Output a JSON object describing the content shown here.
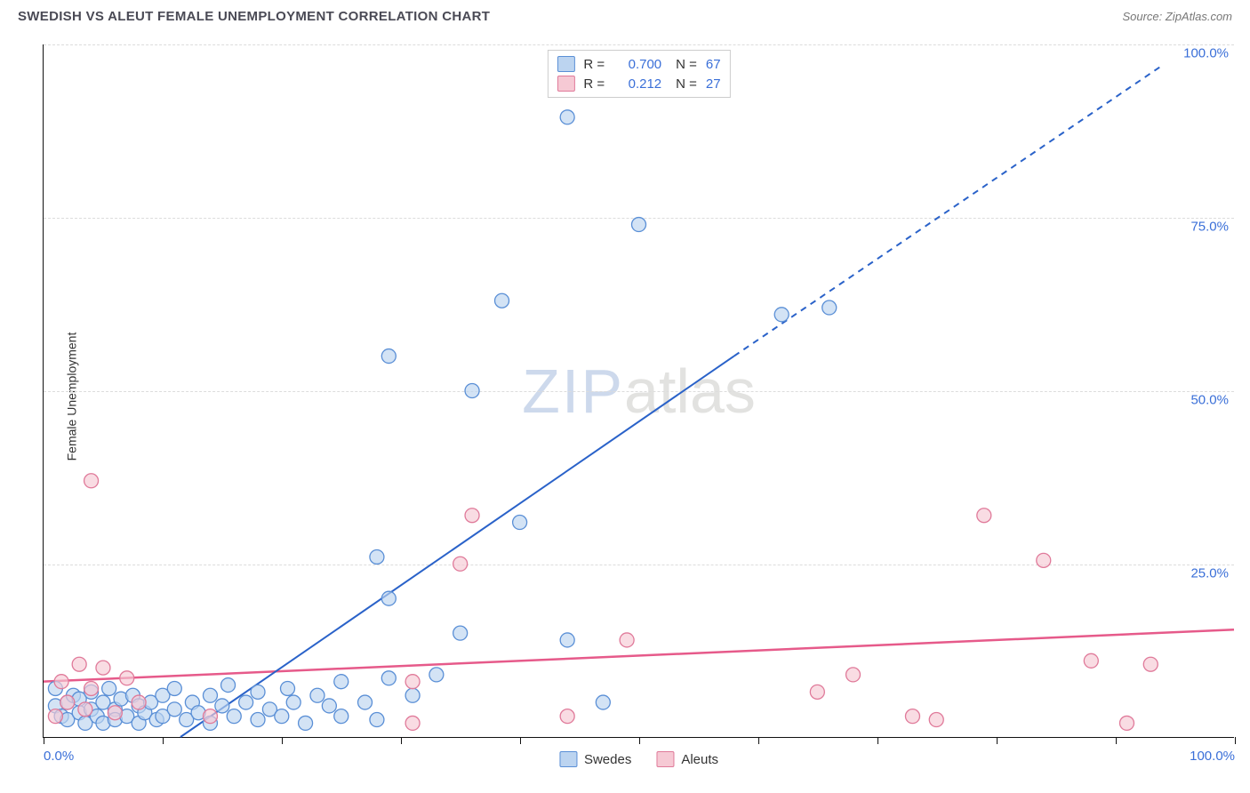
{
  "title": "SWEDISH VS ALEUT FEMALE UNEMPLOYMENT CORRELATION CHART",
  "source_label": "Source: ZipAtlas.com",
  "ylabel": "Female Unemployment",
  "watermark": {
    "part1": "ZIP",
    "part2": "atlas"
  },
  "chart": {
    "type": "scatter",
    "xlim": [
      0,
      100
    ],
    "ylim": [
      0,
      100
    ],
    "x_ticks": [
      0,
      10,
      20,
      30,
      40,
      50,
      60,
      70,
      80,
      90,
      100
    ],
    "x_tick_labels_shown": {
      "0": "0.0%",
      "100": "100.0%"
    },
    "y_gridlines": [
      25,
      50,
      75,
      100
    ],
    "y_tick_labels": {
      "25": "25.0%",
      "50": "50.0%",
      "75": "75.0%",
      "100": "100.0%"
    },
    "background_color": "#ffffff",
    "grid_color": "#dcdcdc",
    "axis_color": "#111111",
    "tick_label_color": "#3a6fd8",
    "series": {
      "swedes": {
        "label": "Swedes",
        "marker_fill": "#bcd4f0",
        "marker_stroke": "#5a8fd6",
        "marker_fill_opacity": 0.65,
        "marker_radius": 8,
        "R": "0.700",
        "N": "67",
        "trend": {
          "solid": [
            [
              11.5,
              0
            ],
            [
              58,
              55
            ]
          ],
          "dashed": [
            [
              58,
              55
            ],
            [
              94,
              97
            ]
          ],
          "color": "#2a62c9",
          "width": 2
        },
        "points": [
          [
            1,
            4.5
          ],
          [
            1.5,
            3
          ],
          [
            2,
            5
          ],
          [
            2,
            2.5
          ],
          [
            2.5,
            6
          ],
          [
            3,
            3.5
          ],
          [
            3,
            5.5
          ],
          [
            3.5,
            2
          ],
          [
            4,
            4
          ],
          [
            4,
            6.5
          ],
          [
            4.5,
            3
          ],
          [
            5,
            5
          ],
          [
            5,
            2
          ],
          [
            5.5,
            7
          ],
          [
            6,
            4
          ],
          [
            6,
            2.5
          ],
          [
            6.5,
            5.5
          ],
          [
            7,
            3
          ],
          [
            7.5,
            6
          ],
          [
            8,
            2
          ],
          [
            8,
            4.5
          ],
          [
            8.5,
            3.5
          ],
          [
            9,
            5
          ],
          [
            9.5,
            2.5
          ],
          [
            10,
            6
          ],
          [
            10,
            3
          ],
          [
            11,
            4
          ],
          [
            11,
            7
          ],
          [
            12,
            2.5
          ],
          [
            12.5,
            5
          ],
          [
            13,
            3.5
          ],
          [
            14,
            6
          ],
          [
            14,
            2
          ],
          [
            15,
            4.5
          ],
          [
            15.5,
            7.5
          ],
          [
            16,
            3
          ],
          [
            17,
            5
          ],
          [
            18,
            2.5
          ],
          [
            18,
            6.5
          ],
          [
            19,
            4
          ],
          [
            20,
            3
          ],
          [
            20.5,
            7
          ],
          [
            21,
            5
          ],
          [
            22,
            2
          ],
          [
            23,
            6
          ],
          [
            24,
            4.5
          ],
          [
            25,
            3
          ],
          [
            25,
            8
          ],
          [
            27,
            5
          ],
          [
            28,
            2.5
          ],
          [
            28,
            26
          ],
          [
            29,
            8.5
          ],
          [
            29,
            20
          ],
          [
            29,
            55
          ],
          [
            31,
            6
          ],
          [
            33,
            9
          ],
          [
            35,
            15
          ],
          [
            36,
            50
          ],
          [
            38.5,
            63
          ],
          [
            40,
            31
          ],
          [
            44,
            89.5
          ],
          [
            44,
            14
          ],
          [
            47,
            5
          ],
          [
            50,
            74
          ],
          [
            62,
            61
          ],
          [
            66,
            62
          ],
          [
            1,
            7
          ]
        ]
      },
      "aleuts": {
        "label": "Aleuts",
        "marker_fill": "#f6c9d4",
        "marker_stroke": "#e07a9a",
        "marker_fill_opacity": 0.65,
        "marker_radius": 8,
        "R": "0.212",
        "N": "27",
        "trend": {
          "solid": [
            [
              0,
              8
            ],
            [
              100,
              15.5
            ]
          ],
          "color": "#e65a8a",
          "width": 2.5
        },
        "points": [
          [
            1,
            3
          ],
          [
            1.5,
            8
          ],
          [
            2,
            5
          ],
          [
            3,
            10.5
          ],
          [
            3.5,
            4
          ],
          [
            4,
            7
          ],
          [
            4,
            37
          ],
          [
            5,
            10
          ],
          [
            6,
            3.5
          ],
          [
            7,
            8.5
          ],
          [
            8,
            5
          ],
          [
            14,
            3
          ],
          [
            31,
            2
          ],
          [
            31,
            8
          ],
          [
            35,
            25
          ],
          [
            36,
            32
          ],
          [
            44,
            3
          ],
          [
            49,
            14
          ],
          [
            65,
            6.5
          ],
          [
            68,
            9
          ],
          [
            73,
            3
          ],
          [
            75,
            2.5
          ],
          [
            79,
            32
          ],
          [
            84,
            25.5
          ],
          [
            88,
            11
          ],
          [
            91,
            2
          ],
          [
            93,
            10.5
          ]
        ]
      }
    },
    "bottom_legend": [
      "Swedes",
      "Aleuts"
    ]
  }
}
